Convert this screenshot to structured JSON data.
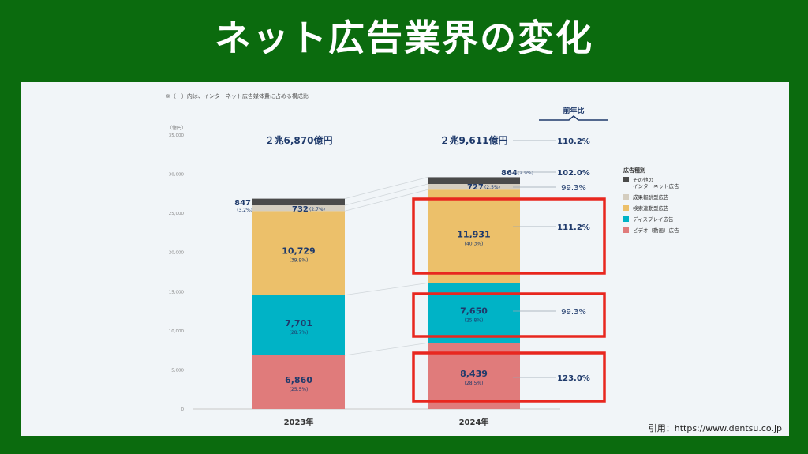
{
  "title": "ネット広告業界の変化",
  "note": "※（　）内は、インターネット広告媒体費に占める構成比",
  "citation": "引用：https://www.dentsu.co.jp",
  "chart_data": {
    "type": "bar",
    "stacked": true,
    "unit_label": "（億円）",
    "categories": [
      "2023年",
      "2024年"
    ],
    "totals": [
      "２兆6,870億円",
      "２兆9,611億円"
    ],
    "yticks": [
      "0",
      "5,000",
      "10,000",
      "15,000",
      "20,000",
      "25,000",
      "30,000",
      "35,000"
    ],
    "ylim": [
      0,
      35000
    ],
    "yoy_header": "前年比",
    "total_yoy": "110.2%",
    "legend_title": "広告種別",
    "series": [
      {
        "name": "ビデオ（動画）広告",
        "color": "#e07b7b",
        "values": [
          6860,
          8439
        ],
        "labels": [
          "6,860",
          "8,439"
        ],
        "shares": [
          "(25.5%)",
          "(28.5%)"
        ],
        "yoy": "123.0%",
        "highlight": true
      },
      {
        "name": "ディスプレイ広告",
        "color": "#00b3c6",
        "values": [
          7701,
          7650
        ],
        "labels": [
          "7,701",
          "7,650"
        ],
        "shares": [
          "(28.7%)",
          "(25.8%)"
        ],
        "yoy": "99.3%",
        "highlight": true
      },
      {
        "name": "検索連動型広告",
        "color": "#ecc06a",
        "values": [
          10729,
          11931
        ],
        "labels": [
          "10,729",
          "11,931"
        ],
        "shares": [
          "(39.9%)",
          "(40.3%)"
        ],
        "yoy": "111.2%",
        "highlight": true
      },
      {
        "name": "成果報酬型広告",
        "color": "#d4cdbf",
        "values": [
          732,
          727
        ],
        "labels": [
          "732",
          "727"
        ],
        "shares": [
          "(2.7%)",
          "(2.5%)"
        ],
        "yoy": "99.3%",
        "highlight": false
      },
      {
        "name": "その他の\nインターネット広告",
        "color": "#4a4a4a",
        "values": [
          847,
          864
        ],
        "labels": [
          "847",
          "864"
        ],
        "shares": [
          "(3.2%)",
          "(2.9%)"
        ],
        "yoy": "102.0%",
        "highlight": false
      }
    ],
    "accent": "#e8271f",
    "navy": "#1f3a6b"
  }
}
